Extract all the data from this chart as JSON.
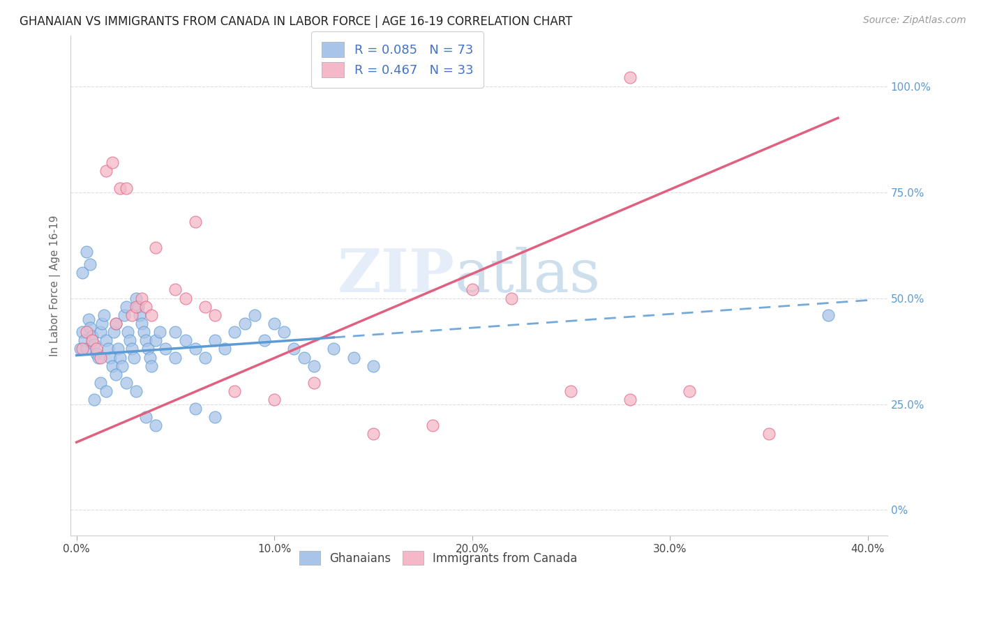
{
  "title": "GHANAIAN VS IMMIGRANTS FROM CANADA IN LABOR FORCE | AGE 16-19 CORRELATION CHART",
  "source": "Source: ZipAtlas.com",
  "ylabel": "In Labor Force | Age 16-19",
  "x_tick_labels": [
    "0.0%",
    "10.0%",
    "20.0%",
    "30.0%",
    "40.0%"
  ],
  "x_tick_values": [
    0.0,
    0.1,
    0.2,
    0.3,
    0.4
  ],
  "y_tick_labels_right": [
    "0%",
    "25.0%",
    "50.0%",
    "75.0%",
    "100.0%"
  ],
  "y_tick_values": [
    0.0,
    0.25,
    0.5,
    0.75,
    1.0
  ],
  "xlim": [
    -0.003,
    0.41
  ],
  "ylim": [
    -0.06,
    1.12
  ],
  "color_ghanaian": "#a8c4e8",
  "color_canada": "#f4b8c8",
  "color_trend_ghanaian": "#5b9bd5",
  "color_trend_canada": "#e06080",
  "legend_r1": "R = 0.085",
  "legend_n1": "N = 73",
  "legend_r2": "R = 0.467",
  "legend_n2": "N = 33",
  "watermark_zip": "ZIP",
  "watermark_atlas": "atlas",
  "ghanaian_x": [
    0.002,
    0.003,
    0.004,
    0.005,
    0.006,
    0.007,
    0.008,
    0.009,
    0.01,
    0.011,
    0.012,
    0.013,
    0.014,
    0.015,
    0.016,
    0.017,
    0.018,
    0.019,
    0.02,
    0.021,
    0.022,
    0.023,
    0.024,
    0.025,
    0.026,
    0.027,
    0.028,
    0.029,
    0.03,
    0.031,
    0.032,
    0.033,
    0.034,
    0.035,
    0.036,
    0.037,
    0.038,
    0.04,
    0.042,
    0.045,
    0.05,
    0.055,
    0.06,
    0.065,
    0.07,
    0.075,
    0.08,
    0.085,
    0.09,
    0.095,
    0.1,
    0.105,
    0.11,
    0.115,
    0.12,
    0.13,
    0.14,
    0.15,
    0.003,
    0.005,
    0.007,
    0.009,
    0.012,
    0.015,
    0.02,
    0.025,
    0.03,
    0.035,
    0.04,
    0.05,
    0.06,
    0.07,
    0.38
  ],
  "ghanaian_y": [
    0.38,
    0.42,
    0.4,
    0.38,
    0.45,
    0.43,
    0.41,
    0.39,
    0.37,
    0.36,
    0.42,
    0.44,
    0.46,
    0.4,
    0.38,
    0.36,
    0.34,
    0.42,
    0.44,
    0.38,
    0.36,
    0.34,
    0.46,
    0.48,
    0.42,
    0.4,
    0.38,
    0.36,
    0.5,
    0.48,
    0.46,
    0.44,
    0.42,
    0.4,
    0.38,
    0.36,
    0.34,
    0.4,
    0.42,
    0.38,
    0.42,
    0.4,
    0.38,
    0.36,
    0.4,
    0.38,
    0.42,
    0.44,
    0.46,
    0.4,
    0.44,
    0.42,
    0.38,
    0.36,
    0.34,
    0.38,
    0.36,
    0.34,
    0.56,
    0.61,
    0.58,
    0.26,
    0.3,
    0.28,
    0.32,
    0.3,
    0.28,
    0.22,
    0.2,
    0.36,
    0.24,
    0.22,
    0.46
  ],
  "canada_x": [
    0.003,
    0.005,
    0.008,
    0.01,
    0.012,
    0.015,
    0.018,
    0.02,
    0.022,
    0.025,
    0.028,
    0.03,
    0.033,
    0.035,
    0.038,
    0.04,
    0.05,
    0.055,
    0.06,
    0.065,
    0.07,
    0.08,
    0.1,
    0.12,
    0.15,
    0.18,
    0.2,
    0.22,
    0.25,
    0.28,
    0.31,
    0.35,
    0.28
  ],
  "canada_y": [
    0.38,
    0.42,
    0.4,
    0.38,
    0.36,
    0.8,
    0.82,
    0.44,
    0.76,
    0.76,
    0.46,
    0.48,
    0.5,
    0.48,
    0.46,
    0.62,
    0.52,
    0.5,
    0.68,
    0.48,
    0.46,
    0.28,
    0.26,
    0.3,
    0.18,
    0.2,
    0.52,
    0.5,
    0.28,
    0.26,
    0.28,
    0.18,
    1.02
  ]
}
